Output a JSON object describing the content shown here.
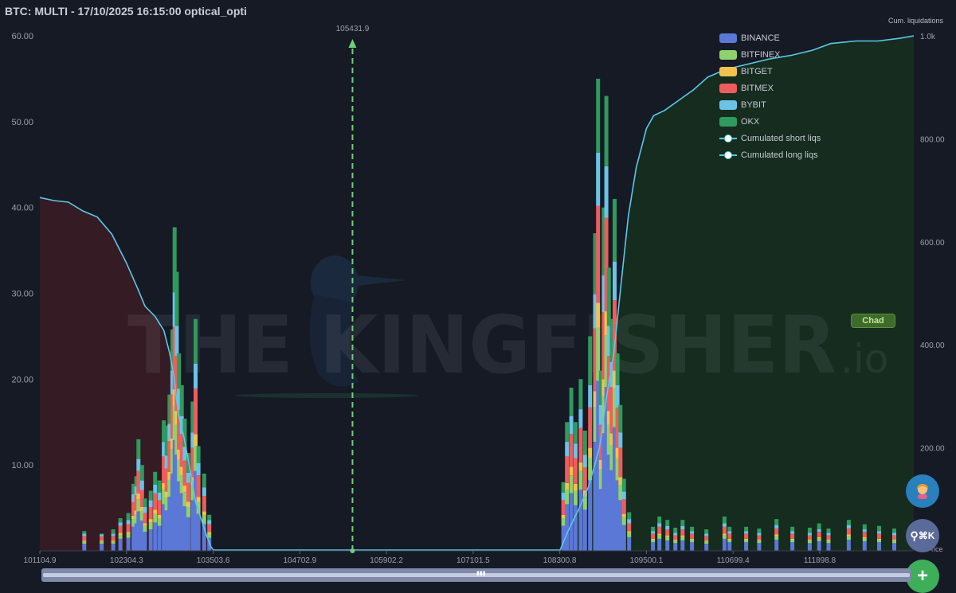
{
  "title": "BTC: MULTI - 17/10/2025 16:15:00 optical_opti",
  "watermark": {
    "text": "THE KINGFISHER",
    "suffix": ".io"
  },
  "chad_badge": "Chad",
  "right_axis_label": "Cum. liquidations",
  "price_axis_label": "Price",
  "fab_icons": [
    "avatar-icon",
    "search-icon",
    "plus-icon"
  ],
  "fab_search_label": "⌘K",
  "colors": {
    "BINANCE": "#5b78d6",
    "BITFINEX": "#8ed16f",
    "BITGET": "#f2c14e",
    "BITMEX": "#ee5d5d",
    "BYBIT": "#6cc3e8",
    "OKX": "#2f9a5e",
    "cum_line": "#5bc8e8",
    "current_price_line": "#6fd07a"
  },
  "chart_data": {
    "type": "bar",
    "x_ticks": [
      "101104.9",
      "102304.3",
      "103503.6",
      "104702.9",
      "105902.2",
      "107101.5",
      "108300.8",
      "109500.1",
      "110699.4",
      "111898.8"
    ],
    "xlim": [
      101104.9,
      113200
    ],
    "y_ticks": [
      "60.00",
      "50.00",
      "40.00",
      "30.00",
      "20.00",
      "10.00"
    ],
    "ylim": [
      0,
      60
    ],
    "y2_ticks": [
      "1.0k",
      "800.00",
      "600.00",
      "400.00",
      "200.00"
    ],
    "y2lim": [
      0,
      1000
    ],
    "current_price": 105431.9,
    "current_price_label": "105431.9",
    "stack_order": [
      "BINANCE",
      "BITFINEX",
      "BITGET",
      "BITMEX",
      "BYBIT",
      "OKX"
    ],
    "legend": [
      "BINANCE",
      "BITFINEX",
      "BITGET",
      "BITMEX",
      "BYBIT",
      "OKX",
      "Cumulated short liqs",
      "Cumulated long liqs"
    ],
    "legend_position": "top-right",
    "bins": [
      {
        "p": 101720,
        "v": [
          0.8,
          0.3,
          0.1,
          0.5,
          0.3,
          0.3
        ]
      },
      {
        "p": 101960,
        "v": [
          0.8,
          0.3,
          0.1,
          0.5,
          0.2,
          0.1
        ]
      },
      {
        "p": 102120,
        "v": [
          0.8,
          0.3,
          0.1,
          0.5,
          0.3,
          0.5
        ]
      },
      {
        "p": 102220,
        "v": [
          1.4,
          0.5,
          0.2,
          0.8,
          0.4,
          0.5
        ]
      },
      {
        "p": 102330,
        "v": [
          1.5,
          0.5,
          0.2,
          0.9,
          0.5,
          0.8
        ]
      },
      {
        "p": 102400,
        "v": [
          2.8,
          0.9,
          0.4,
          1.6,
          0.9,
          1.2
        ]
      },
      {
        "p": 102440,
        "v": [
          3.2,
          1.0,
          0.5,
          1.8,
          1.0,
          1.2
        ]
      },
      {
        "p": 102470,
        "v": [
          4.6,
          1.4,
          0.7,
          2.6,
          1.4,
          2.3
        ]
      },
      {
        "p": 102520,
        "v": [
          3.5,
          1.1,
          0.5,
          2.0,
          1.1,
          1.8
        ]
      },
      {
        "p": 102560,
        "v": [
          2.2,
          0.7,
          0.3,
          1.2,
          0.7,
          1.0
        ]
      },
      {
        "p": 102640,
        "v": [
          2.5,
          0.8,
          0.4,
          1.4,
          0.8,
          1.1
        ]
      },
      {
        "p": 102700,
        "v": [
          3.3,
          1.0,
          0.5,
          1.9,
          1.0,
          1.5
        ]
      },
      {
        "p": 102760,
        "v": [
          2.9,
          0.9,
          0.4,
          1.7,
          0.9,
          1.4
        ]
      },
      {
        "p": 102820,
        "v": [
          5.4,
          1.7,
          0.8,
          3.1,
          1.7,
          2.5
        ]
      },
      {
        "p": 102860,
        "v": [
          4.7,
          1.5,
          0.7,
          2.7,
          1.5,
          3.5
        ]
      },
      {
        "p": 102900,
        "v": [
          6.3,
          2.0,
          0.9,
          3.6,
          2.0,
          3.4
        ]
      },
      {
        "p": 102940,
        "v": [
          9.0,
          2.8,
          1.3,
          5.1,
          2.8,
          4.8
        ]
      },
      {
        "p": 102970,
        "v": [
          12.9,
          4.0,
          1.9,
          7.3,
          4.0,
          7.6
        ]
      },
      {
        "p": 103000,
        "v": [
          11.2,
          3.5,
          1.6,
          6.4,
          3.5,
          6.3
        ]
      },
      {
        "p": 103030,
        "v": [
          8.1,
          2.5,
          1.2,
          4.6,
          2.5,
          4.1
        ]
      },
      {
        "p": 103070,
        "v": [
          6.7,
          2.1,
          1.0,
          3.8,
          2.1,
          3.6
        ]
      },
      {
        "p": 103110,
        "v": [
          5.2,
          1.6,
          0.8,
          2.9,
          1.6,
          3.3
        ]
      },
      {
        "p": 103160,
        "v": [
          3.9,
          1.2,
          0.6,
          2.2,
          1.2,
          2.3
        ]
      },
      {
        "p": 103220,
        "v": [
          5.9,
          1.8,
          0.9,
          3.4,
          1.8,
          3.6
        ]
      },
      {
        "p": 103260,
        "v": [
          9.3,
          2.9,
          1.4,
          5.3,
          2.9,
          5.2
        ]
      },
      {
        "p": 103300,
        "v": [
          4.3,
          1.4,
          0.6,
          2.5,
          1.4,
          2.0
        ]
      },
      {
        "p": 103380,
        "v": [
          3.1,
          1.0,
          0.5,
          1.8,
          1.0,
          1.6
        ]
      },
      {
        "p": 103450,
        "v": [
          1.5,
          0.5,
          0.2,
          0.9,
          0.5,
          0.6
        ]
      },
      {
        "p": 108350,
        "v": [
          2.9,
          0.9,
          0.4,
          1.7,
          0.9,
          1.2
        ]
      },
      {
        "p": 108400,
        "v": [
          5.4,
          1.7,
          0.8,
          3.1,
          1.7,
          2.3
        ]
      },
      {
        "p": 108460,
        "v": [
          6.7,
          2.1,
          1.0,
          3.8,
          2.1,
          3.3
        ]
      },
      {
        "p": 108520,
        "v": [
          5.3,
          1.7,
          0.8,
          3.0,
          1.7,
          2.5
        ]
      },
      {
        "p": 108590,
        "v": [
          7.1,
          2.2,
          1.0,
          4.0,
          2.2,
          3.5
        ]
      },
      {
        "p": 108650,
        "v": [
          4.8,
          1.5,
          0.7,
          2.7,
          1.5,
          2.8
        ]
      },
      {
        "p": 108720,
        "v": [
          8.2,
          2.6,
          1.2,
          4.7,
          2.6,
          5.7
        ]
      },
      {
        "p": 108790,
        "v": [
          12.7,
          4.0,
          1.9,
          7.3,
          4.0,
          7.1
        ]
      },
      {
        "p": 108830,
        "v": [
          19.8,
          6.2,
          2.9,
          11.3,
          6.2,
          8.6
        ]
      },
      {
        "p": 108870,
        "v": [
          7.2,
          2.3,
          1.1,
          4.1,
          2.3,
          4.0
        ]
      },
      {
        "p": 108910,
        "v": [
          13.7,
          4.3,
          2.0,
          7.8,
          4.3,
          7.9
        ]
      },
      {
        "p": 108945,
        "v": [
          19.1,
          6.0,
          2.8,
          10.9,
          6.0,
          8.2
        ]
      },
      {
        "p": 108980,
        "v": [
          11.2,
          3.5,
          1.6,
          6.4,
          3.5,
          6.8
        ]
      },
      {
        "p": 109020,
        "v": [
          9.4,
          2.9,
          1.4,
          5.4,
          2.9,
          5.0
        ]
      },
      {
        "p": 109060,
        "v": [
          14.4,
          4.5,
          2.1,
          8.2,
          4.5,
          7.3
        ]
      },
      {
        "p": 109100,
        "v": [
          8.2,
          2.6,
          1.2,
          4.7,
          2.6,
          3.7
        ]
      },
      {
        "p": 109140,
        "v": [
          5.9,
          1.8,
          0.9,
          3.4,
          1.8,
          3.2
        ]
      },
      {
        "p": 109190,
        "v": [
          3.0,
          0.9,
          0.4,
          1.7,
          0.9,
          1.5
        ]
      },
      {
        "p": 109260,
        "v": [
          1.6,
          0.5,
          0.2,
          0.9,
          0.5,
          0.8
        ]
      },
      {
        "p": 109590,
        "v": [
          1.0,
          0.3,
          0.1,
          0.6,
          0.3,
          0.5
        ]
      },
      {
        "p": 109680,
        "v": [
          1.4,
          0.4,
          0.2,
          0.8,
          0.4,
          0.8
        ]
      },
      {
        "p": 109790,
        "v": [
          1.2,
          0.4,
          0.2,
          0.7,
          0.4,
          0.7
        ]
      },
      {
        "p": 109900,
        "v": [
          0.9,
          0.3,
          0.1,
          0.5,
          0.3,
          0.6
        ]
      },
      {
        "p": 110000,
        "v": [
          1.2,
          0.4,
          0.2,
          0.7,
          0.4,
          0.7
        ]
      },
      {
        "p": 110130,
        "v": [
          1.0,
          0.3,
          0.1,
          0.6,
          0.3,
          0.5
        ]
      },
      {
        "p": 110330,
        "v": [
          0.8,
          0.3,
          0.1,
          0.5,
          0.3,
          0.5
        ]
      },
      {
        "p": 110580,
        "v": [
          1.4,
          0.4,
          0.2,
          0.8,
          0.4,
          0.8
        ]
      },
      {
        "p": 110650,
        "v": [
          1.0,
          0.3,
          0.1,
          0.6,
          0.3,
          0.5
        ]
      },
      {
        "p": 110880,
        "v": [
          1.0,
          0.3,
          0.1,
          0.6,
          0.3,
          0.5
        ]
      },
      {
        "p": 111060,
        "v": [
          0.9,
          0.3,
          0.1,
          0.5,
          0.3,
          0.5
        ]
      },
      {
        "p": 111300,
        "v": [
          1.3,
          0.4,
          0.2,
          0.7,
          0.4,
          0.7
        ]
      },
      {
        "p": 111520,
        "v": [
          1.0,
          0.3,
          0.1,
          0.6,
          0.3,
          0.5
        ]
      },
      {
        "p": 111760,
        "v": [
          0.9,
          0.3,
          0.1,
          0.5,
          0.3,
          0.6
        ]
      },
      {
        "p": 111890,
        "v": [
          1.1,
          0.3,
          0.2,
          0.6,
          0.3,
          0.7
        ]
      },
      {
        "p": 112020,
        "v": [
          0.9,
          0.3,
          0.1,
          0.5,
          0.3,
          0.5
        ]
      },
      {
        "p": 112300,
        "v": [
          1.3,
          0.4,
          0.2,
          0.7,
          0.4,
          0.6
        ]
      },
      {
        "p": 112520,
        "v": [
          1.1,
          0.3,
          0.2,
          0.6,
          0.3,
          0.6
        ]
      },
      {
        "p": 112720,
        "v": [
          1.0,
          0.3,
          0.1,
          0.6,
          0.3,
          0.6
        ]
      },
      {
        "p": 112930,
        "v": [
          0.9,
          0.3,
          0.1,
          0.5,
          0.3,
          0.5
        ]
      }
    ],
    "cum_long": {
      "x": [
        101104.9,
        101300,
        101500,
        101700,
        101900,
        102100,
        102300,
        102460,
        102560,
        102700,
        102820,
        102900,
        102960,
        103020,
        103100,
        103180,
        103260,
        103330,
        103400,
        103470,
        103520
      ],
      "y": [
        686,
        680,
        677,
        660,
        648,
        615,
        560,
        509,
        475,
        455,
        428,
        385,
        340,
        267,
        220,
        160,
        95,
        65,
        35,
        8,
        0
      ]
    },
    "cum_short": {
      "x": [
        108300,
        108420,
        108560,
        108700,
        108850,
        108950,
        109050,
        109150,
        109250,
        109360,
        109500,
        109600,
        109750,
        109950,
        110150,
        110350,
        110600,
        110900,
        111200,
        111500,
        111800,
        112050,
        112400,
        112700,
        113000,
        113200
      ],
      "y": [
        0,
        40,
        80,
        125,
        200,
        300,
        385,
        520,
        650,
        745,
        820,
        845,
        855,
        875,
        895,
        920,
        935,
        945,
        955,
        962,
        972,
        985,
        990,
        990,
        995,
        1000
      ]
    }
  }
}
